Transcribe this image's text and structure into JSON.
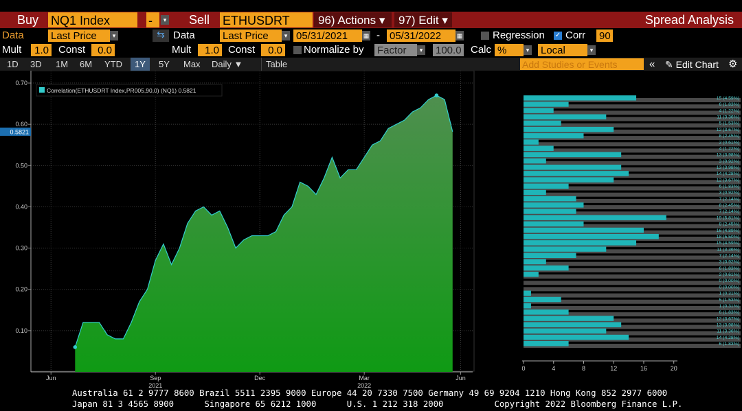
{
  "toolbar": {
    "buy_label": "Buy",
    "buy_security": "NQ1 Index",
    "buy_field": "-",
    "sell_label": "Sell",
    "sell_security": "ETHUSDRT Ind",
    "actions": "96) Actions",
    "edit": "97) Edit",
    "title": "Spread Analysis",
    "data1_label": "Data",
    "data1_field": "Last Price",
    "data2_label": "Data",
    "data2_field": "Last Price",
    "start_date": "05/31/2021",
    "date_sep": "-",
    "end_date": "05/31/2022",
    "regression": "Regression",
    "corr": "Corr",
    "corr_window": "90",
    "mult1_label": "Mult",
    "mult1": "1.0",
    "const1_label": "Const",
    "const1": "0.0",
    "mult2_label": "Mult",
    "mult2": "1.0",
    "const2_label": "Const",
    "const2": "0.0",
    "normalize_label": "Normalize by",
    "normalize": "Factor",
    "factor": "100.0",
    "calc_label": "Calc",
    "calc": "%",
    "currency": "Local",
    "periods": [
      "1D",
      "3D",
      "1M",
      "6M",
      "YTD",
      "1Y",
      "5Y",
      "Max"
    ],
    "frequency": "Daily",
    "table": "Table",
    "studies": "Add Studies or Events",
    "edit_chart": "Edit Chart"
  },
  "chart_data": [
    {
      "type": "area",
      "categories": [
        null,
        null,
        "Jun",
        null,
        null,
        null,
        null,
        null,
        null,
        null,
        null,
        null,
        null,
        null,
        null,
        "Sep",
        null,
        null,
        null,
        null,
        null,
        null,
        null,
        null,
        null,
        null,
        null,
        null,
        "Dec",
        null,
        null,
        null,
        null,
        null,
        null,
        null,
        null,
        null,
        null,
        null,
        null,
        "Mar",
        null,
        null,
        null,
        null,
        null,
        null,
        null,
        null,
        null,
        null,
        null,
        "Jun",
        null
      ],
      "category_years": [
        null,
        null,
        null,
        null,
        null,
        null,
        null,
        null,
        null,
        null,
        null,
        null,
        null,
        null,
        null,
        "2021",
        null,
        null,
        null,
        null,
        null,
        null,
        null,
        null,
        null,
        null,
        null,
        null,
        null,
        null,
        null,
        null,
        null,
        null,
        null,
        null,
        null,
        null,
        null,
        null,
        null,
        "2022",
        null,
        null,
        null,
        null,
        null,
        null,
        null,
        null,
        null,
        null,
        null,
        null,
        null
      ],
      "series": [
        {
          "name": "Correlation(ETHUSDRT Index,PR005,90,0) (NQ1) 0.5821",
          "color": "#33cccc",
          "values": [
            null,
            null,
            null,
            null,
            null,
            0.06,
            0.12,
            0.12,
            0.12,
            0.09,
            0.08,
            0.08,
            0.12,
            0.17,
            0.2,
            0.27,
            0.31,
            0.26,
            0.3,
            0.36,
            0.39,
            0.4,
            0.38,
            0.39,
            0.35,
            0.3,
            0.32,
            0.33,
            0.33,
            0.33,
            0.34,
            0.38,
            0.4,
            0.46,
            0.45,
            0.43,
            0.47,
            0.52,
            0.47,
            0.49,
            0.49,
            0.52,
            0.55,
            0.56,
            0.59,
            0.6,
            0.61,
            0.63,
            0.64,
            0.66,
            0.67,
            0.66,
            0.5821,
            null,
            null
          ]
        }
      ],
      "last_value": 0.5821,
      "ylim": [
        0,
        0.73
      ],
      "yticks": [
        {
          "value": 0.1,
          "label": "0.10"
        },
        {
          "value": 0.2,
          "label": "0.20"
        },
        {
          "value": 0.3,
          "label": "0.30"
        },
        {
          "value": 0.4,
          "label": "0.40"
        },
        {
          "value": 0.5,
          "label": "0.50"
        },
        {
          "value": 0.6,
          "label": "0.60"
        },
        {
          "value": 0.7,
          "label": "0.70"
        }
      ],
      "grid": true
    },
    {
      "type": "hbar",
      "color": "#1fb5b8",
      "values": [
        15,
        6,
        4,
        11,
        5,
        12,
        8,
        2,
        4,
        13,
        3,
        13,
        14,
        12,
        6,
        3,
        7,
        8,
        7,
        19,
        8,
        16,
        18,
        15,
        11,
        7,
        3,
        6,
        2,
        0,
        0,
        1,
        5,
        1,
        6,
        12,
        13,
        11,
        14,
        6
      ],
      "value_labels": [
        "15 (4.59%)",
        "6 (1.83%)",
        "4 (1.22%)",
        "11 (3.36%)",
        "5 (1.53%)",
        "12 (3.67%)",
        "8 (2.45%)",
        "2 (0.61%)",
        "4 (1.22%)",
        "13 (3.98%)",
        "3 (0.92%)",
        "13 (3.98%)",
        "14 (4.28%)",
        "12 (3.67%)",
        "6 (1.83%)",
        "3 (0.92%)",
        "7 (2.14%)",
        "8 (2.45%)",
        "7 (2.14%)",
        "19 (5.81%)",
        "8 (2.45%)",
        "16 (4.89%)",
        "18 (5.50%)",
        "15 (4.59%)",
        "11 (3.36%)",
        "7 (2.14%)",
        "3 (0.92%)",
        "6 (1.83%)",
        "2 (0.61%)",
        "0 (0.00%)",
        "0 (0.00%)",
        "1 (0.31%)",
        "5 (1.53%)",
        "1 (0.31%)",
        "6 (1.83%)",
        "12 (3.67%)",
        "13 (3.98%)",
        "11 (3.36%)",
        "14 (4.28%)",
        "6 (1.83%)"
      ],
      "xlim": [
        0,
        20.3
      ],
      "xticks": [
        0,
        4,
        8,
        12,
        16,
        20
      ]
    }
  ],
  "footer": {
    "line1": "Australia 61 2 9777 8600 Brazil 5511 2395 9000 Europe 44 20 7330 7500 Germany 49 69 9204 1210 Hong Kong 852 2977 6000",
    "line2": "Japan 81 3 4565 8900      Singapore 65 6212 1000      U.S. 1 212 318 2000          Copyright 2022 Bloomberg Finance L.P."
  }
}
